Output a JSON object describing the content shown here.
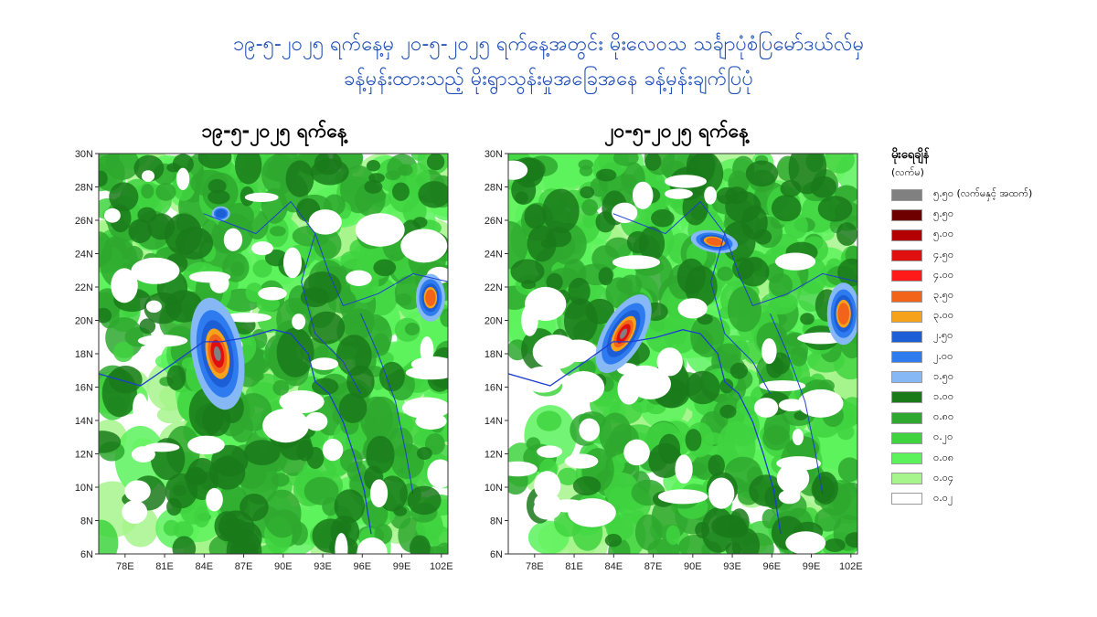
{
  "title": {
    "line1": "၁၉-၅-၂၀၂၅ ရက်နေ့မှ ၂၀-၅-၂၀၂၅ ရက်နေ့အတွင်း မိုးလေဝသ သင်္ချာပုံစံပြမော်ဒယ်လ်မှ",
    "line2": "ခန့်မှန်းထားသည့် မိုးရွာသွန်းမှုအခြေအနေ ခန့်မှန်းချက်ပြပုံ"
  },
  "panels": [
    {
      "title": "၁၉-၅-၂၀၂၅ ရက်နေ့"
    },
    {
      "title": "၂၀-၅-၂၀၂၅ ရက်နေ့"
    }
  ],
  "axes": {
    "lat_ticks": [
      "30N",
      "28N",
      "26N",
      "24N",
      "22N",
      "20N",
      "18N",
      "16N",
      "14N",
      "12N",
      "10N",
      "8N",
      "6N"
    ],
    "lon_ticks": [
      "78E",
      "81E",
      "84E",
      "87E",
      "90E",
      "93E",
      "96E",
      "99E",
      "102E"
    ]
  },
  "legend": {
    "title": "မိုးရေချိန်",
    "unit": "(လက်မ)",
    "items": [
      {
        "label": "၅.၅၀ (လက်မနှင့် အထက်)",
        "color": "#808080"
      },
      {
        "label": "၅.၅၀",
        "color": "#6e0000"
      },
      {
        "label": "၅.၀၀",
        "color": "#b30000"
      },
      {
        "label": "၄.၅၀",
        "color": "#e01010"
      },
      {
        "label": "၄.၀၀",
        "color": "#ff1a1a"
      },
      {
        "label": "၃.၅၀",
        "color": "#f26419"
      },
      {
        "label": "၃.၀၀",
        "color": "#f7a21b"
      },
      {
        "label": "၂.၅၀",
        "color": "#1c5ed6"
      },
      {
        "label": "၂.၀၀",
        "color": "#2e7bf0"
      },
      {
        "label": "၁.၅၀",
        "color": "#86b8f5"
      },
      {
        "label": "၁.၀၀",
        "color": "#1a7a1a"
      },
      {
        "label": "၀.၈၀",
        "color": "#2ea82e"
      },
      {
        "label": "၀.၂၀",
        "color": "#3fd43f"
      },
      {
        "label": "၀.၀၈",
        "color": "#5cf25c"
      },
      {
        "label": "၀.၀၄",
        "color": "#a6f58c"
      },
      {
        "label": "၀.၀၂",
        "color": "#ffffff"
      }
    ]
  }
}
